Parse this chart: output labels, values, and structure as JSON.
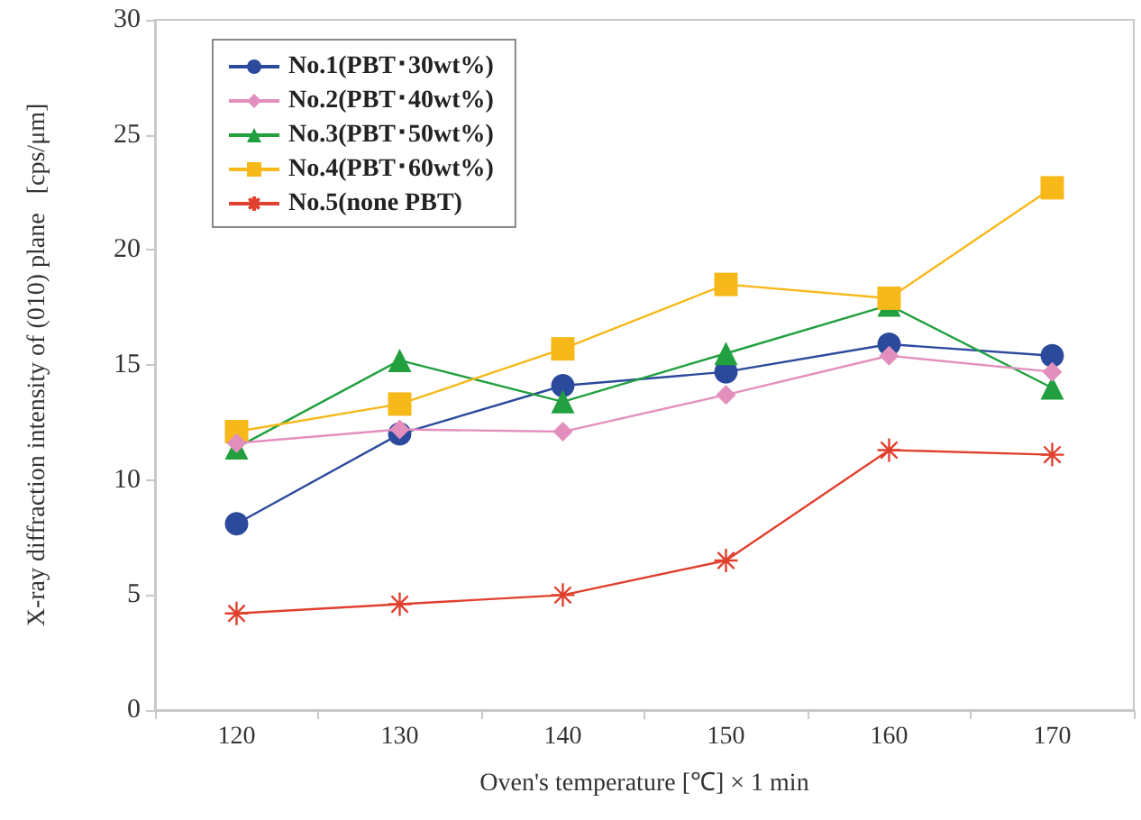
{
  "chart_data": {
    "type": "line",
    "xlabel": "Oven's temperature [℃] × 1 min",
    "ylabel": "X-ray diffraction intensity of (010) plane   [cps/μm]",
    "categories": [
      "120",
      "130",
      "140",
      "150",
      "160",
      "170"
    ],
    "ylim": [
      0,
      30
    ],
    "yticks": [
      0,
      5,
      10,
      15,
      20,
      25,
      30
    ],
    "grid": false,
    "legend": "top left",
    "series": [
      {
        "name": "No.1(PBT･30wt%)",
        "color": "#2b4a9c",
        "marker": "circle",
        "values": [
          8.1,
          12.0,
          14.1,
          14.7,
          15.9,
          15.4
        ]
      },
      {
        "name": "No.2(PBT･40wt%)",
        "color": "#e38fbd",
        "marker": "diamond",
        "values": [
          11.6,
          12.2,
          12.1,
          13.7,
          15.4,
          14.7
        ]
      },
      {
        "name": "No.3(PBT･50wt%)",
        "color": "#22a040",
        "marker": "triangle",
        "values": [
          11.4,
          15.2,
          13.4,
          15.5,
          17.6,
          14.0
        ]
      },
      {
        "name": "No.4(PBT･60wt%)",
        "color": "#f7b819",
        "marker": "square",
        "values": [
          12.1,
          13.3,
          15.7,
          18.5,
          17.9,
          22.7
        ]
      },
      {
        "name": "No.5(none PBT)",
        "color": "#e0402e",
        "marker": "cross",
        "values": [
          4.2,
          4.6,
          5.0,
          6.5,
          11.3,
          11.1
        ]
      }
    ]
  }
}
